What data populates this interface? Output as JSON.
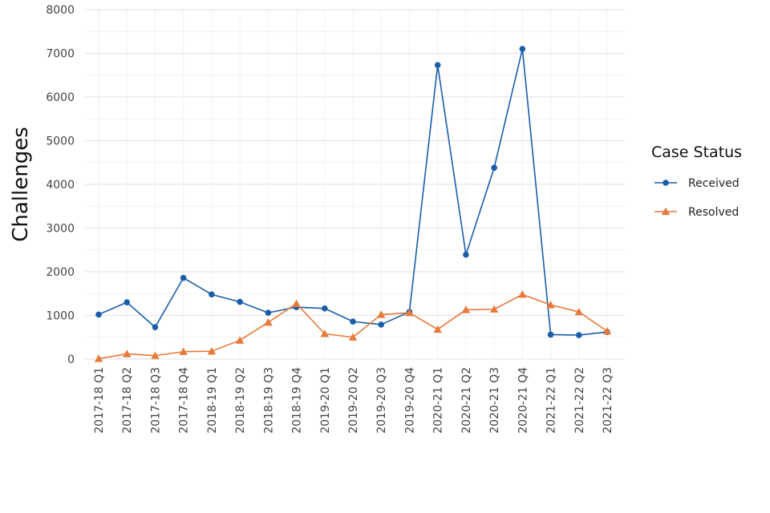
{
  "chart_data": {
    "type": "line",
    "ylabel": "Challenges",
    "ylim": [
      0,
      8000
    ],
    "yticks": [
      0,
      1000,
      2000,
      3000,
      4000,
      5000,
      6000,
      7000,
      8000
    ],
    "grid": true,
    "legend": {
      "title": "Case Status",
      "position": "right"
    },
    "categories": [
      "2017-18 Q1",
      "2017-18 Q2",
      "2017-18 Q3",
      "2017-18 Q4",
      "2018-19 Q1",
      "2018-19 Q2",
      "2018-19 Q3",
      "2018-19 Q4",
      "2019-20 Q1",
      "2019-20 Q2",
      "2019-20 Q3",
      "2019-20 Q4",
      "2020-21 Q1",
      "2020-21 Q2",
      "2020-21 Q3",
      "2020-21 Q4",
      "2021-22 Q1",
      "2021-22 Q2",
      "2021-22 Q3"
    ],
    "series": [
      {
        "name": "Received",
        "color": "#1a5ea8",
        "marker": "circle",
        "values": [
          1020,
          1300,
          730,
          1860,
          1480,
          1310,
          1060,
          1190,
          1160,
          860,
          790,
          1080,
          6730,
          2390,
          4380,
          7100,
          560,
          550,
          620
        ]
      },
      {
        "name": "Resolved",
        "color": "#e8793a",
        "marker": "triangle",
        "values": [
          10,
          120,
          80,
          170,
          180,
          430,
          840,
          1270,
          580,
          500,
          1020,
          1060,
          680,
          1130,
          1140,
          1480,
          1240,
          1080,
          640
        ]
      }
    ]
  }
}
